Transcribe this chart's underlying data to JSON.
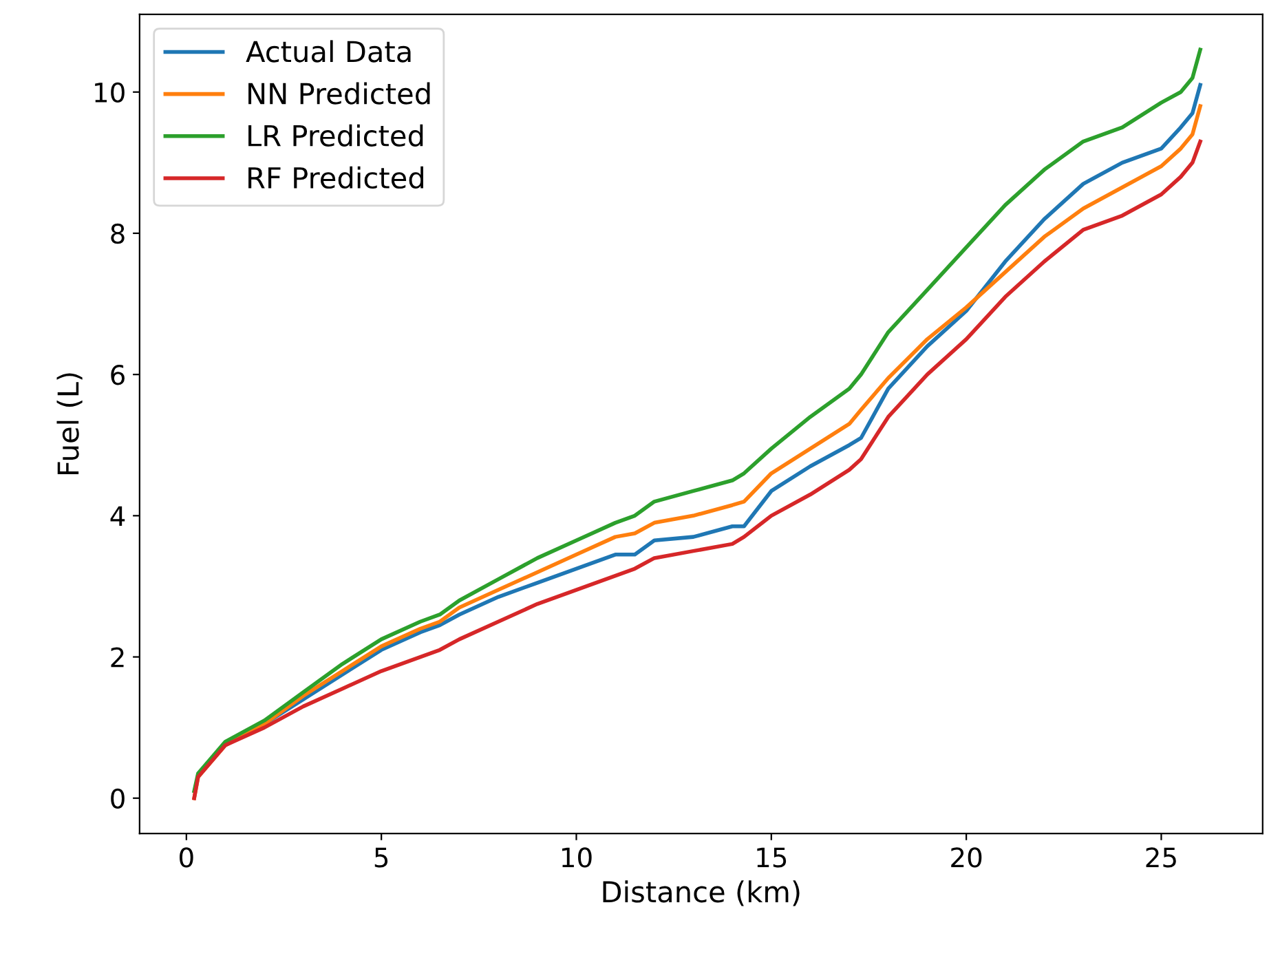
{
  "chart_data": {
    "type": "line",
    "xlabel": "Distance (km)",
    "ylabel": "Fuel (L)",
    "x": [
      0.2,
      0.3,
      1,
      2,
      3,
      4,
      5,
      6,
      6.5,
      7,
      8,
      9,
      10,
      11,
      11.5,
      12,
      13,
      14,
      14.3,
      15,
      16,
      17,
      17.3,
      18,
      19,
      20,
      21,
      22,
      23,
      24,
      25,
      25.5,
      25.8,
      26.0
    ],
    "series": [
      {
        "name": "Actual Data",
        "color": "#1f77b4",
        "values": [
          null,
          null,
          0.75,
          1.05,
          1.4,
          1.75,
          2.1,
          2.35,
          2.45,
          2.6,
          2.85,
          3.05,
          3.25,
          3.45,
          3.45,
          3.65,
          3.7,
          3.85,
          3.85,
          4.35,
          4.7,
          5.0,
          5.1,
          5.8,
          6.4,
          6.9,
          7.6,
          8.2,
          8.7,
          9.0,
          9.2,
          9.5,
          9.7,
          10.1
        ]
      },
      {
        "name": "NN Predicted",
        "color": "#ff7f0e",
        "values": [
          0,
          0.3,
          0.75,
          1.05,
          1.45,
          1.8,
          2.15,
          2.4,
          2.5,
          2.7,
          2.95,
          3.2,
          3.45,
          3.7,
          3.75,
          3.9,
          4.0,
          4.15,
          4.2,
          4.6,
          4.95,
          5.3,
          5.5,
          5.95,
          6.5,
          6.95,
          7.45,
          7.95,
          8.35,
          8.65,
          8.95,
          9.2,
          9.4,
          9.8
        ]
      },
      {
        "name": "LR Predicted",
        "color": "#2ca02c",
        "values": [
          0.1,
          0.35,
          0.8,
          1.1,
          1.5,
          1.9,
          2.25,
          2.5,
          2.6,
          2.8,
          3.1,
          3.4,
          3.65,
          3.9,
          4.0,
          4.2,
          4.35,
          4.5,
          4.6,
          4.95,
          5.4,
          5.8,
          6.0,
          6.6,
          7.2,
          7.8,
          8.4,
          8.9,
          9.3,
          9.5,
          9.85,
          10.0,
          10.2,
          10.6
        ]
      },
      {
        "name": "RF Predicted",
        "color": "#d62728",
        "values": [
          0,
          0.3,
          0.75,
          1.0,
          1.3,
          1.55,
          1.8,
          2.0,
          2.1,
          2.25,
          2.5,
          2.75,
          2.95,
          3.15,
          3.25,
          3.4,
          3.5,
          3.6,
          3.7,
          4.0,
          4.3,
          4.65,
          4.8,
          5.4,
          6.0,
          6.5,
          7.1,
          7.6,
          8.05,
          8.25,
          8.55,
          8.8,
          9.0,
          9.3
        ]
      }
    ],
    "xlim": [
      -1.2,
      27.6
    ],
    "ylim": [
      -0.5,
      11.1
    ],
    "xticks": [
      0,
      5,
      10,
      15,
      20,
      25
    ],
    "yticks": [
      0,
      2,
      4,
      6,
      8,
      10
    ],
    "legend": "top left",
    "grid": false,
    "marker": "none",
    "line_style": "solid"
  }
}
